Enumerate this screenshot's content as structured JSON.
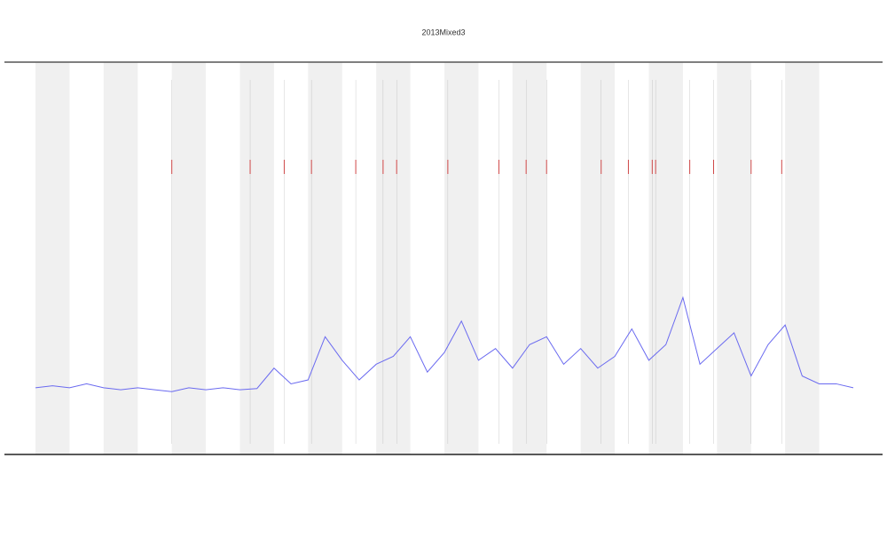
{
  "chart_data": {
    "type": "line",
    "title": "2013Mixed3",
    "x": [
      0,
      0.5,
      1,
      1.5,
      2,
      2.5,
      3,
      3.5,
      4,
      4.5,
      5,
      5.5,
      6,
      6.5,
      7,
      7.5,
      8,
      8.5,
      9,
      9.5,
      10,
      10.5,
      11,
      11.5,
      12,
      12.5,
      13,
      13.5,
      14,
      14.5,
      15,
      15.5,
      16,
      16.5,
      17,
      17.5,
      18,
      18.5,
      19,
      19.5,
      20,
      20.5,
      21,
      21.5,
      22,
      22.5,
      23,
      23.5,
      24
    ],
    "series": [
      {
        "color": "#6a6af0",
        "values": [
          17,
          17.5,
          17,
          18,
          17,
          16.5,
          17,
          16.5,
          16,
          17,
          16.5,
          17,
          16.5,
          16.8,
          22,
          18,
          19,
          30,
          24,
          19,
          23,
          25,
          30,
          21,
          26,
          34,
          24,
          27,
          22,
          28,
          30,
          23,
          27,
          22,
          25,
          32,
          24,
          28,
          40,
          23,
          27,
          31,
          20,
          28,
          33,
          20,
          18,
          18,
          17
        ]
      }
    ],
    "bands": [
      [
        0,
        1
      ],
      [
        2,
        3
      ],
      [
        4,
        5
      ],
      [
        6,
        7
      ],
      [
        8,
        9
      ],
      [
        10,
        11
      ],
      [
        12,
        13
      ],
      [
        14,
        15
      ],
      [
        16,
        17
      ],
      [
        18,
        19
      ],
      [
        20,
        21
      ],
      [
        22,
        23
      ]
    ],
    "events": [
      {
        "x": 4,
        "color": "#e03030"
      },
      {
        "x": 6.3,
        "color": "#e03030"
      },
      {
        "x": 7.3,
        "color": "#e03030"
      },
      {
        "x": 8.1,
        "color": "#e03030"
      },
      {
        "x": 9.4,
        "color": "#e03030"
      },
      {
        "x": 10.2,
        "color": "#e03030"
      },
      {
        "x": 10.6,
        "color": "#e03030"
      },
      {
        "x": 12.1,
        "color": "#e03030"
      },
      {
        "x": 13.6,
        "color": "#e03030"
      },
      {
        "x": 14.4,
        "color": "#e03030"
      },
      {
        "x": 15,
        "color": "#e03030"
      },
      {
        "x": 16.6,
        "color": "#e03030"
      },
      {
        "x": 17.4,
        "color": "#e03030"
      },
      {
        "x": 18.1,
        "color": "#e03030"
      },
      {
        "x": 18.2,
        "color": "#e03030"
      },
      {
        "x": 19.2,
        "color": "#e03030"
      },
      {
        "x": 19.9,
        "color": "#e03030"
      },
      {
        "x": 21,
        "color": "#e03030"
      },
      {
        "x": 21.9,
        "color": "#e03030"
      }
    ],
    "xlim": [
      0,
      24
    ],
    "ylim": [
      0,
      100
    ]
  }
}
